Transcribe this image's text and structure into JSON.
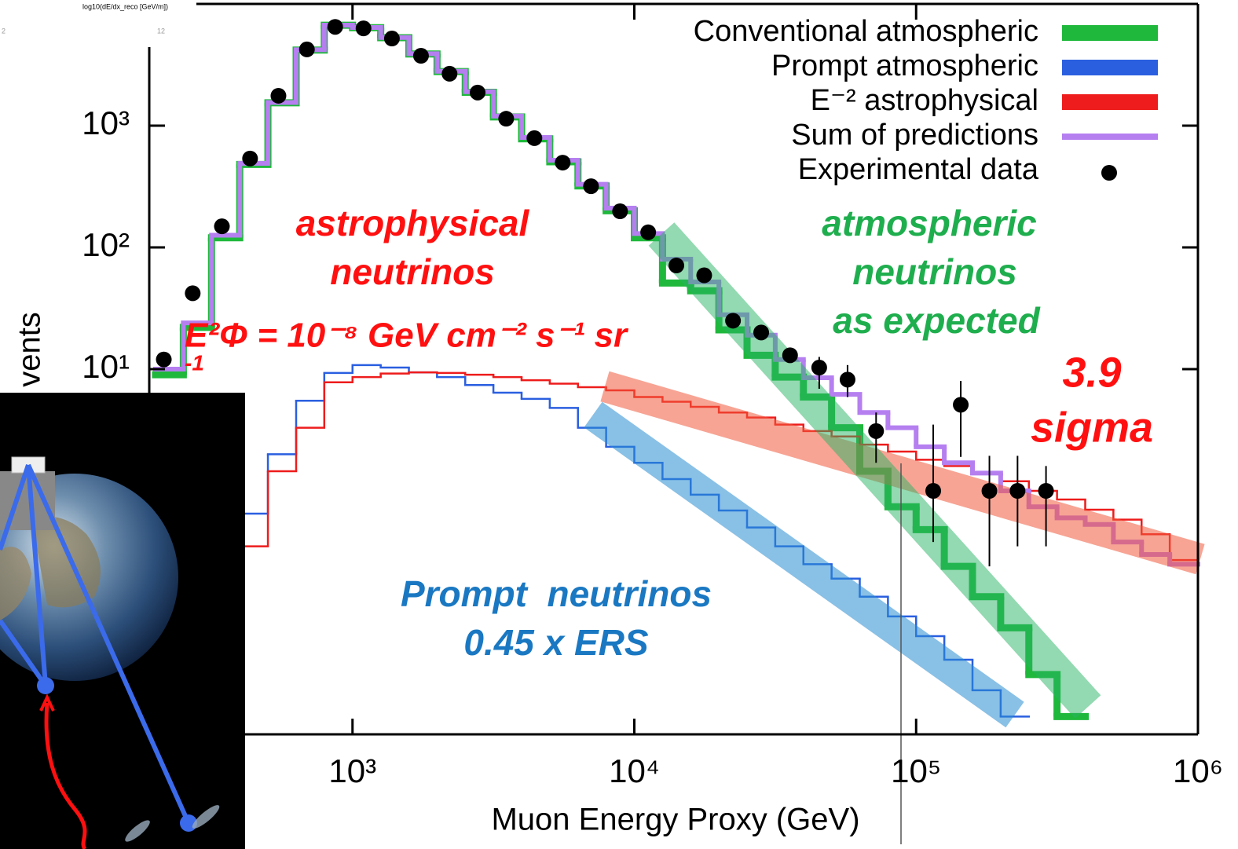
{
  "header": {
    "axis_note": "log10(dE/dx_reco [GeV/m])",
    "note_left": "2",
    "note_right": "12"
  },
  "chart_data": {
    "type": "histogram",
    "x_label": "Muon Energy Proxy (GeV)",
    "y_label": "vents",
    "xscale": "log",
    "yscale": "log",
    "xlim": [
      190,
      1000000
    ],
    "ylim": [
      0.01,
      10000
    ],
    "xticks": [
      {
        "value": 1000,
        "label": "10³"
      },
      {
        "value": 10000,
        "label": "10⁴"
      },
      {
        "value": 100000,
        "label": "10⁵"
      },
      {
        "value": 1000000,
        "label": "10⁶"
      }
    ],
    "yticks": [
      {
        "value": 10,
        "label": "10¹"
      },
      {
        "value": 100,
        "label": "10²"
      },
      {
        "value": 1000,
        "label": "10³"
      }
    ],
    "legend": "upper right",
    "bins": [
      200,
      251,
      316,
      398,
      501,
      631,
      794,
      1000,
      1259,
      1585,
      1995,
      2512,
      3162,
      3981,
      5012,
      6310,
      7943,
      10000,
      12589,
      15849,
      19953,
      25119,
      31623,
      39811,
      50119,
      63096,
      79433,
      100000,
      125893,
      158489,
      199526,
      251189,
      316228,
      398107,
      501187,
      630957,
      794328,
      1000000
    ],
    "series": [
      {
        "name": "Conventional atmospheric",
        "color": "#1fb83c",
        "width": 9,
        "values": [
          9,
          22,
          120,
          480,
          1540,
          4180,
          6680,
          6380,
          5280,
          3880,
          2780,
          1880,
          1180,
          780,
          505,
          320,
          200,
          120,
          51,
          44,
          21,
          13,
          8.6,
          5.9,
          3.3,
          1.45,
          0.74,
          0.48,
          0.24,
          0.135,
          0.075,
          0.031,
          0.014,
          null,
          null,
          null,
          null
        ]
      },
      {
        "name": "Prompt atmospheric",
        "color": "#2a5fe0",
        "width": 2.5,
        "values": [
          null,
          null,
          null,
          0.65,
          2.0,
          5.5,
          9.3,
          10.8,
          10.3,
          9.4,
          8.6,
          7.4,
          6.4,
          5.7,
          4.8,
          3.3,
          2.3,
          1.7,
          1.25,
          0.93,
          0.69,
          0.5,
          0.35,
          0.25,
          0.19,
          0.135,
          0.093,
          0.064,
          0.041,
          0.023,
          0.014,
          null,
          null,
          null,
          null,
          null,
          null
        ]
      },
      {
        "name": "E⁻² astrophysical",
        "color": "#ee1c1c",
        "width": 2.5,
        "values": [
          null,
          null,
          null,
          0.35,
          1.45,
          3.3,
          7.8,
          8.6,
          9.2,
          9.4,
          9.3,
          9.0,
          8.6,
          8.1,
          7.6,
          7.1,
          6.7,
          5.9,
          5.4,
          4.9,
          4.4,
          4.0,
          3.5,
          3.1,
          2.8,
          2.4,
          2.1,
          1.8,
          1.6,
          1.4,
          1.2,
          1.0,
          0.85,
          0.7,
          0.58,
          0.44,
          0.27
        ]
      },
      {
        "name": "Sum of predictions",
        "color": "#b57ff0",
        "width": 6,
        "values": [
          10,
          24,
          126,
          490,
          1550,
          4200,
          6700,
          6400,
          5300,
          3900,
          2800,
          1900,
          1200,
          800,
          520,
          330,
          210,
          130,
          80,
          52,
          28,
          19,
          12,
          8.5,
          6.2,
          4.4,
          3.3,
          2.3,
          1.7,
          1.4,
          1.0,
          0.74,
          0.6,
          0.53,
          0.38,
          0.3,
          0.25
        ]
      }
    ],
    "points": {
      "name": "Experimental data",
      "color": "#000000",
      "x": [
        214,
        271,
        344,
        433,
        546,
        689,
        868,
        1094,
        1380,
        1750,
        2210,
        2780,
        3510,
        4420,
        5570,
        7020,
        8900,
        11200,
        14100,
        17700,
        22400,
        28200,
        35700,
        45300,
        57100,
        72100,
        115000,
        144000,
        182000,
        229000,
        289000
      ],
      "values": [
        12,
        42,
        149,
        537,
        1760,
        4230,
        6480,
        6300,
        5200,
        3750,
        2670,
        1870,
        1140,
        790,
        497,
        318,
        198,
        133,
        71,
        59,
        25,
        20,
        13,
        10.3,
        8.2,
        3.1,
        1.0,
        5.1,
        1.0,
        1.0,
        1.0
      ],
      "err_low": [
        null,
        null,
        null,
        null,
        null,
        null,
        null,
        null,
        null,
        null,
        null,
        null,
        null,
        null,
        null,
        null,
        null,
        null,
        null,
        null,
        null,
        null,
        null,
        3.4,
        2.3,
        1.4,
        0.62,
        3.2,
        0.76,
        0.65,
        0.65
      ],
      "err_high": [
        null,
        null,
        null,
        null,
        null,
        null,
        null,
        null,
        null,
        null,
        null,
        null,
        null,
        null,
        null,
        null,
        null,
        null,
        null,
        null,
        null,
        null,
        null,
        2.3,
        2.6,
        1.3,
        2.5,
        2.9,
        0.94,
        0.94,
        0.6
      ]
    },
    "annotations": {
      "astro": [
        "astrophysical",
        "neutrinos"
      ],
      "flux": [
        "E²Φ = 10⁻⁸ GeV cm⁻² s⁻¹ sr",
        "-1"
      ],
      "atmo": [
        "atmospheric",
        "neutrinos",
        "as expected"
      ],
      "sigma": [
        "3.9",
        "sigma"
      ],
      "prompt": [
        "Prompt  neutrinos",
        "0.45 x ERS"
      ]
    }
  }
}
